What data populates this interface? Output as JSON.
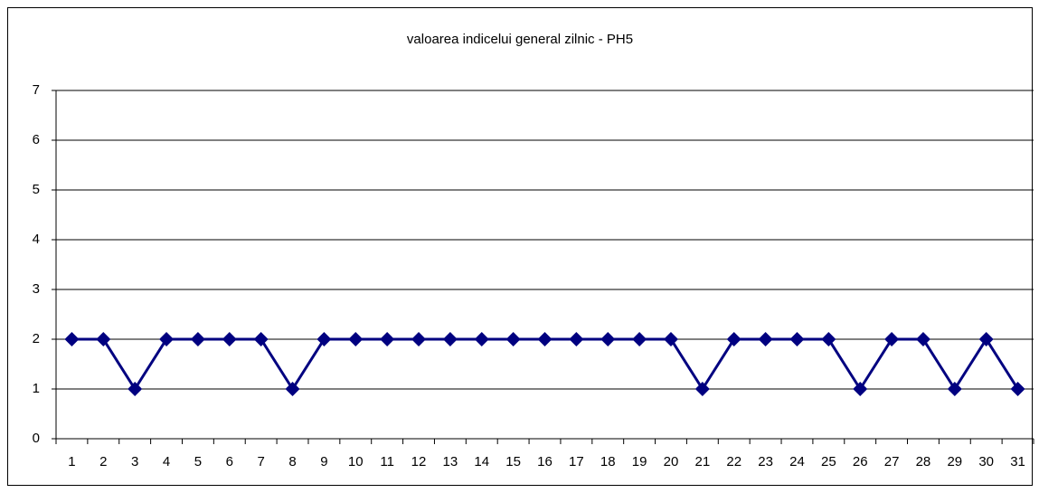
{
  "chart_data": {
    "type": "line",
    "title": "valoarea indicelui general zilnic - PH5",
    "categories": [
      "1",
      "2",
      "3",
      "4",
      "5",
      "6",
      "7",
      "8",
      "9",
      "10",
      "11",
      "12",
      "13",
      "14",
      "15",
      "16",
      "17",
      "18",
      "19",
      "20",
      "21",
      "22",
      "23",
      "24",
      "25",
      "26",
      "27",
      "28",
      "29",
      "30",
      "31"
    ],
    "series": [
      {
        "name": "PH5",
        "color": "#000080",
        "values": [
          2,
          2,
          1,
          2,
          2,
          2,
          2,
          1,
          2,
          2,
          2,
          2,
          2,
          2,
          2,
          2,
          2,
          2,
          2,
          2,
          1,
          2,
          2,
          2,
          2,
          1,
          2,
          2,
          1,
          2,
          1
        ]
      }
    ],
    "ylim": [
      0,
      7
    ],
    "yticks": [
      0,
      1,
      2,
      3,
      4,
      5,
      6,
      7
    ],
    "grid": true,
    "legend": false
  }
}
